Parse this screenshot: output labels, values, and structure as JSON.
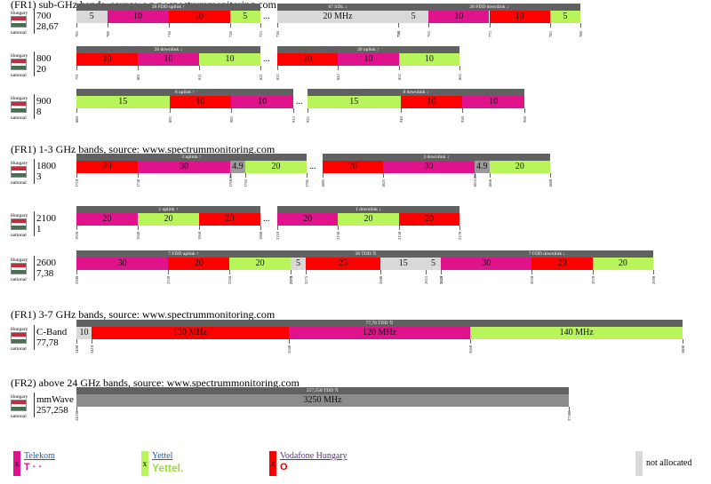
{
  "section_titles": [
    "(FR1) sub-GHz bands, source: www.spectrummonitoring.com",
    "(FR1) 1-3 GHz bands, source: www.spectrummonitoring.com",
    "(FR1) 3-7 GHz bands, source: www.spectrummonitoring.com",
    "(FR2) above 24 GHz bands, source: www.spectrummonitoring.com"
  ],
  "flag": {
    "country": "Hungary",
    "scope": "national"
  },
  "colors": {
    "T": "#e0138c",
    "Y": "#b7f55a",
    "V": "#ff0000",
    "N": "#d9d9d9",
    "MM": "#8c8c8c",
    "header": "#616161"
  },
  "legend": [
    {
      "name": "Telekom",
      "logo": "T · ·",
      "swatch_color": "#e0138c",
      "swatch_text": "x",
      "logo_color": "#e0138c",
      "link_color": "#1a5fb4"
    },
    {
      "name": "Yettel",
      "logo": "Yettel.",
      "swatch_color": "#b7f55a",
      "swatch_text": "x",
      "logo_color": "#9bd93a",
      "link_color": "#1a5fb4"
    },
    {
      "name": "Vodafone Hungary",
      "logo": "O",
      "swatch_color": "#ff0000",
      "swatch_text": "x",
      "logo_color": "#e60000",
      "link_color": "#5b2d8e"
    },
    {
      "name": "not allocated",
      "logo": "",
      "swatch_color": "#d9d9d9",
      "swatch_text": "",
      "logo_color": "#000",
      "link_color": "#000"
    }
  ],
  "chart_data": {
    "type": "table",
    "bands": [
      {
        "name": "700",
        "sub": "28,67",
        "segments": [
          {
            "header": "28 FDD uplink ↑",
            "blocks": [
              {
                "o": "N",
                "label": "5"
              },
              {
                "o": "T",
                "label": "10"
              },
              {
                "o": "V",
                "label": "10"
              },
              {
                "o": "Y",
                "label": "5"
              }
            ],
            "ticks": [
              "703",
              "708",
              "718",
              "728",
              "733"
            ]
          },
          {
            "header": "67 SDL ↓",
            "blocks": [
              {
                "o": "N",
                "label": "20 MHz"
              }
            ],
            "ticks": [
              "738",
              "758"
            ]
          },
          {
            "header": "28 FDD downlink ↓",
            "blocks": [
              {
                "o": "N",
                "label": "5"
              },
              {
                "o": "T",
                "label": "10"
              },
              {
                "o": "V",
                "label": "10"
              },
              {
                "o": "Y",
                "label": "5"
              }
            ],
            "ticks": [
              "758",
              "763",
              "773",
              "783",
              "788"
            ]
          }
        ]
      },
      {
        "name": "800",
        "sub": "20",
        "segments": [
          {
            "header": "20 downlink ↓",
            "blocks": [
              {
                "o": "V",
                "label": "10"
              },
              {
                "o": "T",
                "label": "10"
              },
              {
                "o": "Y",
                "label": "10"
              }
            ],
            "ticks": [
              "791",
              "801",
              "811",
              "821"
            ]
          },
          {
            "header": "20 uplink ↑",
            "blocks": [
              {
                "o": "V",
                "label": "10"
              },
              {
                "o": "T",
                "label": "10"
              },
              {
                "o": "Y",
                "label": "10"
              }
            ],
            "ticks": [
              "832",
              "842",
              "852",
              "862"
            ]
          }
        ]
      },
      {
        "name": "900",
        "sub": "8",
        "segments": [
          {
            "header": "8 uplink ↑",
            "blocks": [
              {
                "o": "Y",
                "label": "15"
              },
              {
                "o": "V",
                "label": "10"
              },
              {
                "o": "T",
                "label": "10"
              }
            ],
            "ticks": [
              "880",
              "895",
              "905",
              "915"
            ]
          },
          {
            "header": "8 downlink ↓",
            "blocks": [
              {
                "o": "Y",
                "label": "15"
              },
              {
                "o": "V",
                "label": "10"
              },
              {
                "o": "T",
                "label": "10"
              }
            ],
            "ticks": [
              "925",
              "940",
              "950",
              "960"
            ]
          }
        ]
      },
      {
        "name": "1800",
        "sub": "3",
        "segments": [
          {
            "header": "3 uplink ↑",
            "blocks": [
              {
                "o": "V",
                "label": "20"
              },
              {
                "o": "T",
                "label": "30"
              },
              {
                "o": "MM",
                "label": "4.9"
              },
              {
                "o": "Y",
                "label": "20"
              }
            ],
            "ticks": [
              "1710",
              "1730",
              "1760.05",
              "1765",
              "1785"
            ]
          },
          {
            "header": "3 downlink ↓",
            "blocks": [
              {
                "o": "V",
                "label": "20"
              },
              {
                "o": "T",
                "label": "30"
              },
              {
                "o": "MM",
                "label": "4.9"
              },
              {
                "o": "Y",
                "label": "20"
              }
            ],
            "ticks": [
              "1805",
              "1825",
              "1855.05",
              "1860",
              "1880"
            ]
          }
        ]
      },
      {
        "name": "2100",
        "sub": "1",
        "segments": [
          {
            "header": "1 uplink ↑",
            "blocks": [
              {
                "o": "T",
                "label": "20"
              },
              {
                "o": "Y",
                "label": "20"
              },
              {
                "o": "V",
                "label": "20"
              }
            ],
            "ticks": [
              "1920",
              "1940",
              "1960",
              "1980"
            ]
          },
          {
            "header": "1 downlink ↓",
            "blocks": [
              {
                "o": "T",
                "label": "20"
              },
              {
                "o": "Y",
                "label": "20"
              },
              {
                "o": "V",
                "label": "20"
              }
            ],
            "ticks": [
              "2110",
              "2130",
              "2150",
              "2170"
            ]
          }
        ]
      },
      {
        "name": "2600",
        "sub": "7,38",
        "segments": [
          {
            "header": "7 FDD uplink ↑",
            "blocks": [
              {
                "o": "T",
                "label": "30"
              },
              {
                "o": "V",
                "label": "20"
              },
              {
                "o": "Y",
                "label": "20"
              }
            ],
            "ticks": [
              "2500",
              "2530",
              "2550",
              "2570"
            ]
          },
          {
            "header": "38 TDD ⇅",
            "blocks": [
              {
                "o": "N",
                "label": "5"
              },
              {
                "o": "V",
                "label": "25"
              },
              {
                "o": "N",
                "label": "15"
              },
              {
                "o": "N",
                "label": "5"
              }
            ],
            "ticks": [
              "2570",
              "2575",
              "2600",
              "2615",
              "2620"
            ]
          },
          {
            "header": "7 FDD downlink ↓",
            "blocks": [
              {
                "o": "T",
                "label": "30"
              },
              {
                "o": "V",
                "label": "20"
              },
              {
                "o": "Y",
                "label": "20"
              }
            ],
            "ticks": [
              "2620",
              "2650",
              "2670",
              "2690"
            ]
          }
        ]
      },
      {
        "name": "C-Band",
        "sub": "77,78",
        "segments": [
          {
            "header": "77,78 TDD ⇅",
            "blocks": [
              {
                "o": "N",
                "label": "10"
              },
              {
                "o": "V",
                "label": "130 MHz"
              },
              {
                "o": "T",
                "label": "120 MHz"
              },
              {
                "o": "Y",
                "label": "140 MHz"
              }
            ],
            "ticks": [
              "3400",
              "3410",
              "3540",
              "3660",
              "3800"
            ]
          }
        ]
      },
      {
        "name": "mmWave",
        "sub": "257,258",
        "segments": [
          {
            "header": "257,258 TDD ⇅",
            "blocks": [
              {
                "o": "MM",
                "label": "3250 MHz"
              }
            ],
            "ticks": [
              "24250",
              "27500"
            ]
          }
        ]
      }
    ]
  }
}
